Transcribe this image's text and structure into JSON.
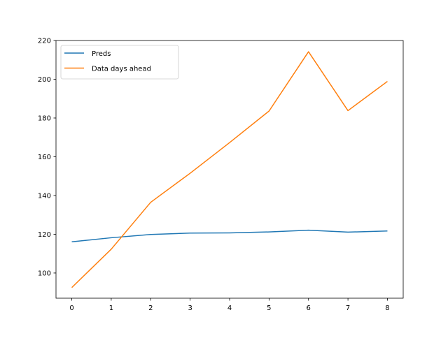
{
  "chart_data": {
    "type": "line",
    "title": "",
    "xlabel": "",
    "ylabel": "",
    "x": [
      0,
      1,
      2,
      3,
      4,
      5,
      6,
      7,
      8
    ],
    "xlim": [
      -0.4,
      8.4
    ],
    "ylim": [
      87,
      220
    ],
    "xticks": [
      0,
      1,
      2,
      3,
      4,
      5,
      6,
      7,
      8
    ],
    "yticks": [
      100,
      120,
      140,
      160,
      180,
      200,
      220
    ],
    "grid": false,
    "legend_position": "top-left",
    "series": [
      {
        "name": "Preds",
        "color": "#1f77b4",
        "values": [
          116.1,
          118.2,
          119.9,
          120.6,
          120.7,
          121.2,
          122.1,
          121.1,
          121.7
        ]
      },
      {
        "name": "Data days ahead",
        "color": "#ff7f0e",
        "values": [
          92.5,
          112.3,
          136.5,
          151.5,
          167.3,
          183.6,
          214.2,
          183.8,
          198.9
        ]
      }
    ]
  }
}
